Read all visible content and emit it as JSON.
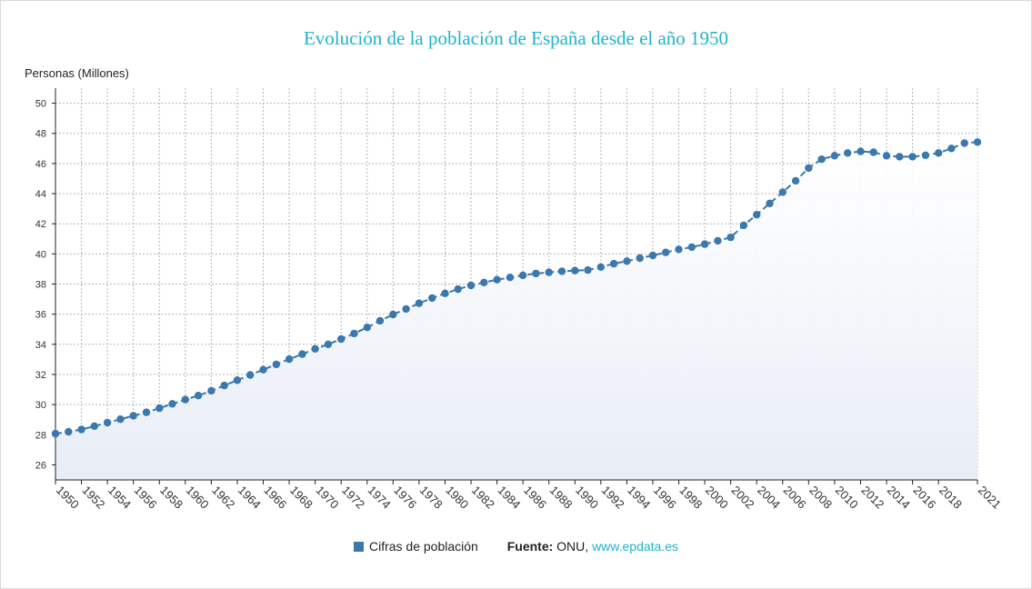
{
  "chart_data": {
    "type": "line",
    "title": "Evolución de la población de España desde el año 1950",
    "ylabel": "Personas (Millones)",
    "xlabel": "",
    "ylim": [
      25,
      51
    ],
    "yticks": [
      26,
      28,
      30,
      32,
      34,
      36,
      38,
      40,
      42,
      44,
      46,
      48,
      50
    ],
    "xticks": [
      1950,
      1952,
      1954,
      1956,
      1958,
      1960,
      1962,
      1964,
      1966,
      1968,
      1970,
      1972,
      1974,
      1976,
      1978,
      1980,
      1982,
      1984,
      1986,
      1988,
      1990,
      1992,
      1994,
      1996,
      1998,
      2000,
      2002,
      2004,
      2006,
      2008,
      2010,
      2012,
      2014,
      2016,
      2018,
      2021
    ],
    "grid": true,
    "legend_position": "bottom",
    "line_color": "#3a78ad",
    "series": [
      {
        "name": "Cifras de población",
        "x": [
          1950,
          1951,
          1952,
          1953,
          1954,
          1955,
          1956,
          1957,
          1958,
          1959,
          1960,
          1961,
          1962,
          1963,
          1964,
          1965,
          1966,
          1967,
          1968,
          1969,
          1970,
          1971,
          1972,
          1973,
          1974,
          1975,
          1976,
          1977,
          1978,
          1979,
          1980,
          1981,
          1982,
          1983,
          1984,
          1985,
          1986,
          1987,
          1988,
          1989,
          1990,
          1991,
          1992,
          1993,
          1994,
          1995,
          1996,
          1997,
          1998,
          1999,
          2000,
          2001,
          2002,
          2003,
          2004,
          2005,
          2006,
          2007,
          2008,
          2009,
          2010,
          2011,
          2012,
          2013,
          2014,
          2015,
          2016,
          2017,
          2018,
          2019,
          2020,
          2021
        ],
        "values": [
          28.07,
          28.2,
          28.35,
          28.57,
          28.8,
          29.03,
          29.26,
          29.49,
          29.76,
          30.05,
          30.33,
          30.6,
          30.92,
          31.27,
          31.62,
          31.97,
          32.32,
          32.67,
          33.02,
          33.35,
          33.7,
          34.0,
          34.35,
          34.72,
          35.12,
          35.56,
          35.98,
          36.35,
          36.72,
          37.07,
          37.38,
          37.66,
          37.91,
          38.1,
          38.29,
          38.44,
          38.58,
          38.7,
          38.78,
          38.85,
          38.89,
          38.93,
          39.13,
          39.35,
          39.52,
          39.72,
          39.9,
          40.1,
          40.3,
          40.45,
          40.65,
          40.87,
          41.1,
          41.9,
          42.6,
          43.35,
          44.1,
          44.85,
          45.7,
          46.28,
          46.52,
          46.7,
          46.8,
          46.75,
          46.52,
          46.45,
          46.45,
          46.55,
          46.7,
          47.0,
          47.35,
          47.42
        ]
      }
    ],
    "source_label": "Fuente:",
    "source_text": "ONU,",
    "source_link": "www.epdata.es"
  }
}
